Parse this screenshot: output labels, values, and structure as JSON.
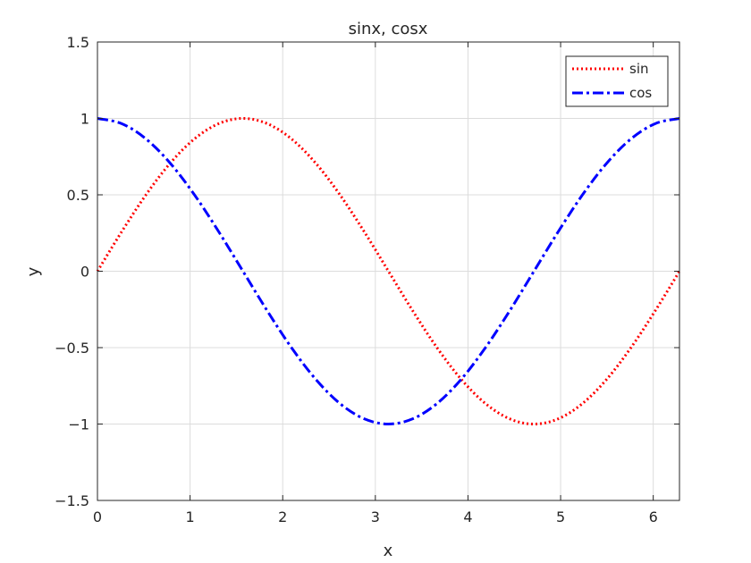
{
  "chart_data": {
    "type": "line",
    "title": "sinx, cosx",
    "xlabel": "x",
    "ylabel": "y",
    "xlim": [
      0,
      6.2832
    ],
    "ylim": [
      -1.5,
      1.5
    ],
    "xticks": [
      0,
      1,
      2,
      3,
      4,
      5,
      6
    ],
    "xtick_labels": [
      "0",
      "1",
      "2",
      "3",
      "4",
      "5",
      "6"
    ],
    "yticks": [
      -1.5,
      -1,
      -0.5,
      0,
      0.5,
      1,
      1.5
    ],
    "ytick_labels": [
      "−1.5",
      "−1",
      "−0.5",
      "0",
      "0.5",
      "1",
      "1.5"
    ],
    "grid": true,
    "legend_position": "top-right",
    "x": [
      0,
      0.2618,
      0.5236,
      0.7854,
      1.0472,
      1.309,
      1.5708,
      1.8326,
      2.0944,
      2.3562,
      2.618,
      2.8798,
      3.1416,
      3.4034,
      3.6652,
      3.927,
      4.1888,
      4.4506,
      4.7124,
      4.9742,
      5.236,
      5.4978,
      5.7596,
      6.0214,
      6.2832
    ],
    "series": [
      {
        "name": "sin",
        "color": "#ff0000",
        "line_style": "dotted",
        "values": [
          0,
          0.2588,
          0.5,
          0.7071,
          0.866,
          0.9659,
          1,
          0.9659,
          0.866,
          0.7071,
          0.5,
          0.2588,
          0,
          -0.2588,
          -0.5,
          -0.7071,
          -0.866,
          -0.9659,
          -1,
          -0.9659,
          -0.866,
          -0.7071,
          -0.5,
          -0.2588,
          0
        ]
      },
      {
        "name": "cos",
        "color": "#0000ff",
        "line_style": "dash-dot",
        "values": [
          1,
          0.9659,
          0.866,
          0.7071,
          0.5,
          0.2588,
          0,
          -0.2588,
          -0.5,
          -0.7071,
          -0.866,
          -0.9659,
          -1,
          -0.9659,
          -0.866,
          -0.7071,
          -0.5,
          -0.2588,
          0,
          0.2588,
          0.5,
          0.7071,
          0.866,
          0.9659,
          1
        ]
      }
    ]
  }
}
